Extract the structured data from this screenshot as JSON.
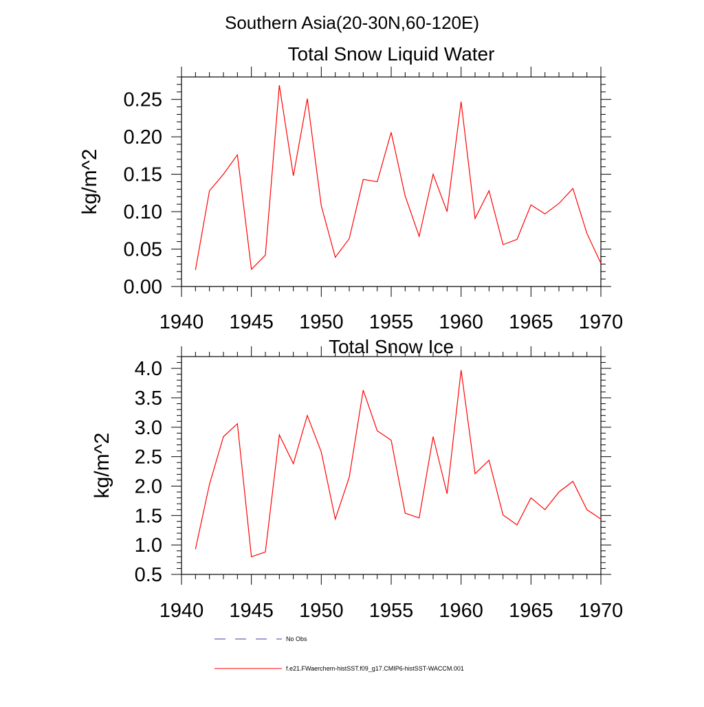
{
  "figure": {
    "main_title": "Southern Asia(20-30N,60-120E)"
  },
  "legend": {
    "position": "bottom-left",
    "entries": [
      {
        "label": "No Obs",
        "color": "#3b3ba8",
        "style": "dashed"
      },
      {
        "label": "f.e21.FWaerchem-histSST.f09_g17.CMIP6-histSST-WACCM.001",
        "color": "#ff0000",
        "style": "solid"
      }
    ]
  },
  "chart_data": [
    {
      "type": "line",
      "title": "Total Snow Liquid Water",
      "xlabel": "",
      "ylabel": "kg/m^2",
      "xlim": [
        1940,
        1970
      ],
      "ylim": [
        0.0,
        0.28
      ],
      "x_ticks": [
        1940,
        1945,
        1950,
        1955,
        1960,
        1965,
        1970
      ],
      "x_tick_labels": [
        "1940",
        "1945",
        "1950",
        "1955",
        "1960",
        "1965",
        "1970"
      ],
      "y_ticks": [
        0.0,
        0.05,
        0.1,
        0.15,
        0.2,
        0.25
      ],
      "y_tick_labels": [
        "0.00",
        "0.05",
        "0.10",
        "0.15",
        "0.20",
        "0.25"
      ],
      "grid": false,
      "x": [
        1941,
        1942,
        1943,
        1944,
        1945,
        1946,
        1947,
        1948,
        1949,
        1950,
        1951,
        1952,
        1953,
        1954,
        1955,
        1956,
        1957,
        1958,
        1959,
        1960,
        1961,
        1962,
        1963,
        1964,
        1965,
        1966,
        1967,
        1968,
        1969,
        1970
      ],
      "series": [
        {
          "name": "f.e21.FWaerchem-histSST.f09_g17.CMIP6-histSST-WACCM.001",
          "color": "#ff0000",
          "values": [
            0.022,
            0.128,
            0.15,
            0.176,
            0.023,
            0.042,
            0.269,
            0.148,
            0.251,
            0.108,
            0.039,
            0.064,
            0.143,
            0.14,
            0.206,
            0.121,
            0.067,
            0.15,
            0.1,
            0.247,
            0.091,
            0.128,
            0.056,
            0.063,
            0.109,
            0.097,
            0.111,
            0.131,
            0.071,
            0.031
          ]
        }
      ]
    },
    {
      "type": "line",
      "title": "Total Snow Ice",
      "xlabel": "",
      "ylabel": "kg/m^2",
      "xlim": [
        1940,
        1970
      ],
      "ylim": [
        0.5,
        4.2
      ],
      "x_ticks": [
        1940,
        1945,
        1950,
        1955,
        1960,
        1965,
        1970
      ],
      "x_tick_labels": [
        "1940",
        "1945",
        "1950",
        "1955",
        "1960",
        "1965",
        "1970"
      ],
      "y_ticks": [
        0.5,
        1.0,
        1.5,
        2.0,
        2.5,
        3.0,
        3.5,
        4.0
      ],
      "y_tick_labels": [
        "0.5",
        "1.0",
        "1.5",
        "2.0",
        "2.5",
        "3.0",
        "3.5",
        "4.0"
      ],
      "grid": false,
      "x": [
        1941,
        1942,
        1943,
        1944,
        1945,
        1946,
        1947,
        1948,
        1949,
        1950,
        1951,
        1952,
        1953,
        1954,
        1955,
        1956,
        1957,
        1958,
        1959,
        1960,
        1961,
        1962,
        1963,
        1964,
        1965,
        1966,
        1967,
        1968,
        1969,
        1970
      ],
      "series": [
        {
          "name": "f.e21.FWaerchem-histSST.f09_g17.CMIP6-histSST-WACCM.001",
          "color": "#ff0000",
          "values": [
            0.93,
            2.03,
            2.84,
            3.06,
            0.8,
            0.88,
            2.87,
            2.38,
            3.2,
            2.58,
            1.44,
            2.15,
            3.63,
            2.94,
            2.78,
            1.54,
            1.46,
            2.84,
            1.87,
            3.97,
            2.21,
            2.44,
            1.51,
            1.34,
            1.8,
            1.6,
            1.9,
            2.08,
            1.6,
            1.44
          ]
        }
      ]
    }
  ]
}
